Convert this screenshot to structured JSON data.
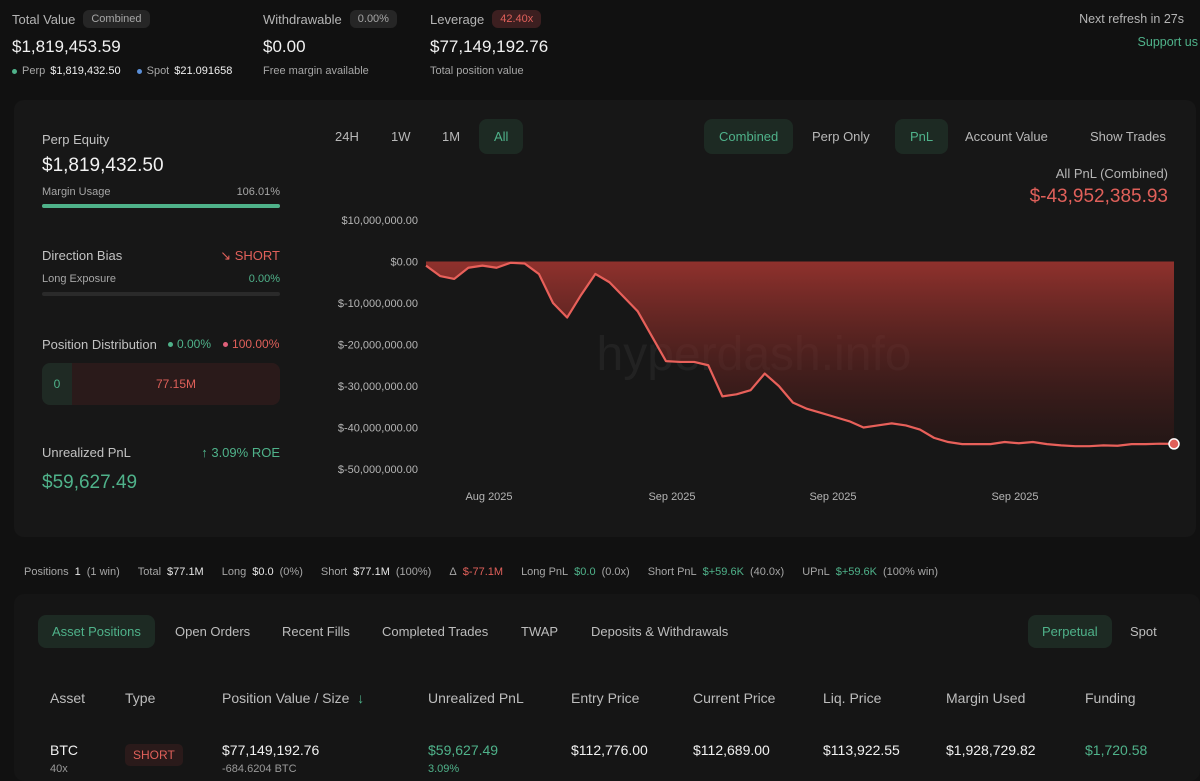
{
  "top": {
    "total_value_label": "Total Value",
    "total_value_pill": "Combined",
    "total_value": "$1,819,453.59",
    "perp_label": "Perp",
    "perp_value": "$1,819,432.50",
    "spot_label": "Spot",
    "spot_value": "$21.091658",
    "withdrawable_label": "Withdrawable",
    "withdrawable_pill": "0.00%",
    "withdrawable_value": "$0.00",
    "withdrawable_sub": "Free margin available",
    "leverage_label": "Leverage",
    "leverage_pill": "42.40x",
    "leverage_value": "$77,149,192.76",
    "leverage_sub": "Total position value",
    "refresh_text": "Next refresh in 27s",
    "support_text": "Support us"
  },
  "left": {
    "perp_equity_label": "Perp Equity",
    "perp_equity_value": "$1,819,432.50",
    "margin_usage_label": "Margin Usage",
    "margin_usage_value": "106.01%",
    "direction_bias_label": "Direction Bias",
    "direction_bias_value": "SHORT",
    "long_exposure_label": "Long Exposure",
    "long_exposure_value": "0.00%",
    "position_dist_label": "Position Distribution",
    "position_dist_long": "0.00%",
    "position_dist_short": "100.00%",
    "dist_long_amount": "0",
    "dist_short_amount": "77.15M",
    "unrealized_pnl_label": "Unrealized PnL",
    "roe_value": "3.09% ROE",
    "unrealized_pnl_value": "$59,627.49"
  },
  "controls": {
    "range_24h": "24H",
    "range_1w": "1W",
    "range_1m": "1M",
    "range_all": "All",
    "combined": "Combined",
    "perp_only": "Perp Only",
    "pnl": "PnL",
    "account_value": "Account Value",
    "show_trades": "Show Trades"
  },
  "chart_header": {
    "title": "All PnL (Combined)",
    "value": "$-43,952,385.93"
  },
  "chart_data": {
    "type": "area",
    "ylim": [
      -50000000,
      10000000
    ],
    "yticks": [
      "$10,000,000.00",
      "$0.00",
      "$-10,000,000.00",
      "$-20,000,000.00",
      "$-30,000,000.00",
      "$-40,000,000.00",
      "$-50,000,000.00"
    ],
    "ytick_values": [
      10000000,
      0,
      -10000000,
      -20000000,
      -30000000,
      -40000000,
      -50000000
    ],
    "xticks": [
      "Aug 2025",
      "Sep 2025",
      "Sep 2025",
      "Sep 2025"
    ],
    "series": [
      {
        "values": [
          -1000000,
          -3500000,
          -4200000,
          -1500000,
          -1000000,
          -1500000,
          -300000,
          -500000,
          -3000000,
          -10000000,
          -13500000,
          -8000000,
          -3000000,
          -5000000,
          -8500000,
          -12000000,
          -18000000,
          -24000000,
          -24200000,
          -24200000,
          -25000000,
          -32500000,
          -32000000,
          -31000000,
          -27000000,
          -30000000,
          -34000000,
          -35500000,
          -36500000,
          -37500000,
          -38500000,
          -40000000,
          -39500000,
          -39000000,
          -39500000,
          -40500000,
          -42500000,
          -43500000,
          -44000000,
          -44000000,
          -44000000,
          -43500000,
          -43800000,
          -43500000,
          -44000000,
          -44300000,
          -44500000,
          -44500000,
          -44300000,
          -44400000,
          -44000000,
          -44000000,
          -43900000,
          -43952385
        ]
      }
    ],
    "watermark": "hyperdash.info"
  },
  "summary": {
    "positions_label": "Positions",
    "positions_value": "1",
    "positions_note": "(1 win)",
    "total_label": "Total",
    "total_value": "$77.1M",
    "long_label": "Long",
    "long_value": "$0.0",
    "long_note": "(0%)",
    "short_label": "Short",
    "short_value": "$77.1M",
    "short_note": "(100%)",
    "delta_label": "Δ",
    "delta_value": "$-77.1M",
    "long_pnl_label": "Long PnL",
    "long_pnl_value": "$0.0",
    "long_pnl_note": "(0.0x)",
    "short_pnl_label": "Short PnL",
    "short_pnl_value": "$+59.6K",
    "short_pnl_note": "(40.0x)",
    "upnl_label": "UPnL",
    "upnl_value": "$+59.6K",
    "upnl_note": "(100% win)"
  },
  "tabs": {
    "asset_positions": "Asset Positions",
    "open_orders": "Open Orders",
    "recent_fills": "Recent Fills",
    "completed_trades": "Completed Trades",
    "twap": "TWAP",
    "deposits": "Deposits & Withdrawals",
    "perpetual": "Perpetual",
    "spot": "Spot"
  },
  "table": {
    "headers": {
      "asset": "Asset",
      "type": "Type",
      "position_value": "Position Value / Size",
      "sort_icon": "↓",
      "upnl": "Unrealized PnL",
      "entry": "Entry Price",
      "current": "Current Price",
      "liq": "Liq. Price",
      "margin": "Margin Used",
      "funding": "Funding"
    },
    "rows": [
      {
        "asset": "BTC",
        "leverage": "40x",
        "type": "SHORT",
        "position_value": "$77,149,192.76",
        "size": "-684.6204 BTC",
        "upnl": "$59,627.49",
        "upnl_pct": "3.09%",
        "entry": "$112,776.00",
        "current": "$112,689.00",
        "liq": "$113,922.55",
        "margin": "$1,928,729.82",
        "funding": "$1,720.58"
      }
    ]
  },
  "colors": {
    "green": "#4fb28a",
    "red": "#e0605a",
    "bg": "#111111"
  }
}
